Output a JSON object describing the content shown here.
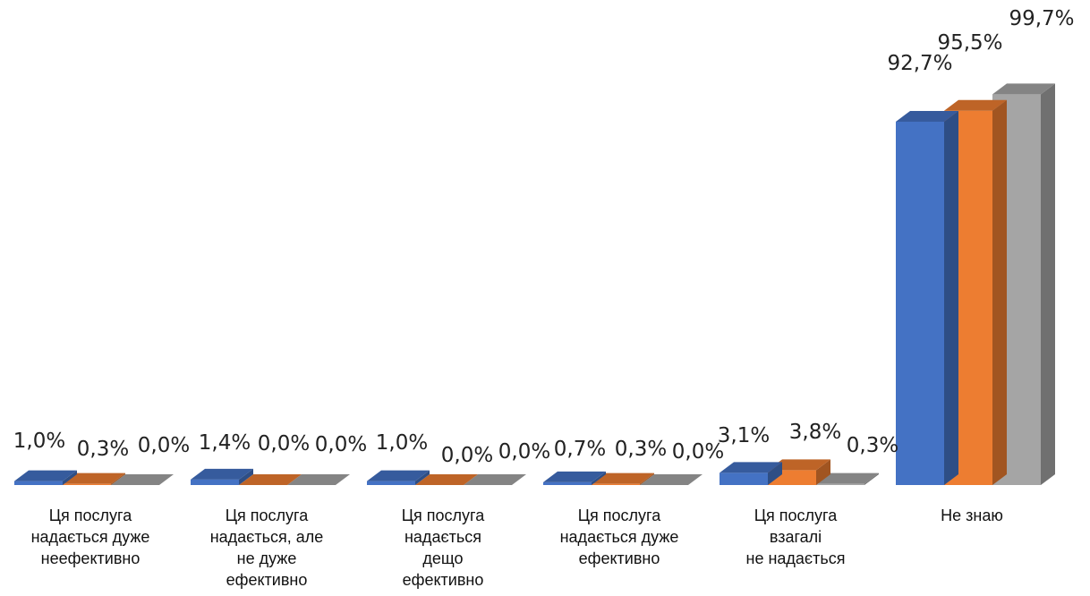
{
  "chart_data": {
    "type": "bar",
    "title": "",
    "xlabel": "",
    "ylabel": "",
    "ylim": [
      0,
      100
    ],
    "grid": false,
    "legend": "none",
    "categories": [
      [
        "Ця послуга",
        "надається дуже",
        "неефективно"
      ],
      [
        "Ця послуга",
        "надається, але",
        "не дуже",
        "ефективно"
      ],
      [
        "Ця послуга",
        "надається",
        "дещо",
        "ефективно"
      ],
      [
        "Ця послуга",
        "надається дуже",
        "ефективно"
      ],
      [
        "Ця послуга",
        "взагалі",
        "не надається"
      ],
      [
        "Не знаю"
      ]
    ],
    "series": [
      {
        "color": "#4472C4",
        "values": [
          1.0,
          1.4,
          1.0,
          0.7,
          3.1,
          92.7
        ],
        "labels": [
          "1,0%",
          "1,4%",
          "1,0%",
          "0,7%",
          "3,1%",
          "92,7%"
        ]
      },
      {
        "color": "#ED7D31",
        "values": [
          0.3,
          0.0,
          0.0,
          0.3,
          3.8,
          95.5
        ],
        "labels": [
          "0,3%",
          "0,0%",
          "0,0%",
          "0,3%",
          "3,8%",
          "95,5%"
        ]
      },
      {
        "color": "#A5A5A5",
        "values": [
          0.0,
          0.0,
          0.0,
          0.0,
          0.3,
          99.7
        ],
        "labels": [
          "0,0%",
          "0,0%",
          "0,0%",
          "0,0%",
          "0,3%",
          "99,7%"
        ]
      }
    ]
  }
}
